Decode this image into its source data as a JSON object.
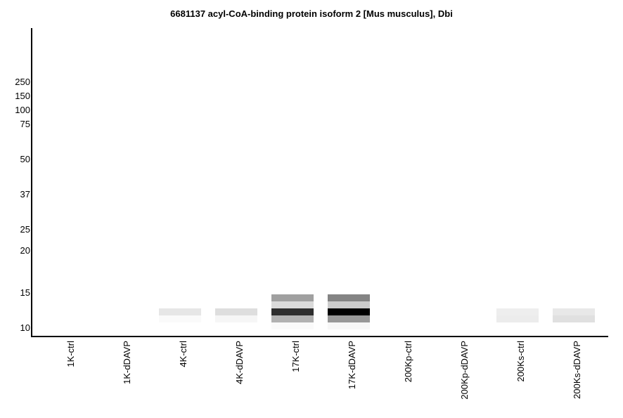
{
  "chart_data": {
    "type": "heatmap",
    "title": "6681137 acyl-CoA-binding protein isoform 2 [Mus musculus], Dbi",
    "ylabel": "",
    "xlabel": "",
    "y_ticks": [
      250,
      150,
      100,
      75,
      50,
      37,
      25,
      20,
      15,
      10
    ],
    "lanes": [
      "1K-ctrl",
      "1K-dDAVP",
      "4K-ctrl",
      "4K-dDAVP",
      "17K-ctrl",
      "17K-dDAVP",
      "200Kp-ctrl",
      "200Kp-dDAVP",
      "200Ks-ctrl",
      "200Ks-dDAVP"
    ],
    "band_slots_note": "slots 0-4 from top of signal region (~15 kDa) down to ~10 kDa; values are grey level hex",
    "bands": [
      [],
      [],
      [
        null,
        null,
        "#e6e6e6",
        "#fafafa",
        null
      ],
      [
        null,
        null,
        "#dedede",
        "#f6f6f6",
        null
      ],
      [
        "#a0a0a0",
        "#dadada",
        "#2e2e2e",
        "#b2b2b2",
        "#fafafa"
      ],
      [
        "#848484",
        "#cccccc",
        "#000000",
        "#989898",
        "#f7f7f7"
      ],
      [],
      [],
      [
        null,
        null,
        "#eeeeee",
        "#ececec",
        null
      ],
      [
        null,
        null,
        "#e8e8e8",
        "#e0e0e0",
        null
      ]
    ]
  }
}
